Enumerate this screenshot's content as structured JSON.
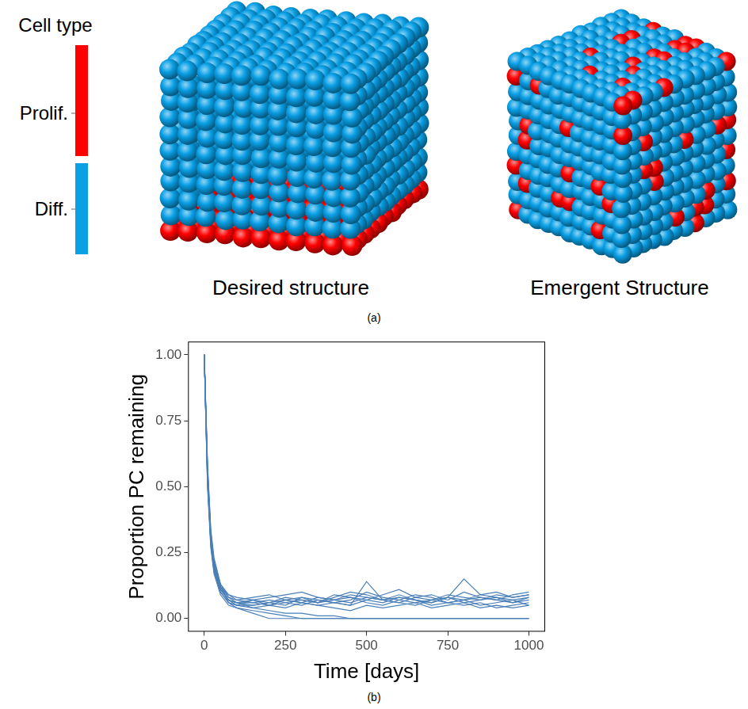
{
  "panel_a": {
    "label": "(a)",
    "legend_title": "Cell type",
    "legend_items": [
      {
        "label": "Prolif.",
        "color": "#ff0000"
      },
      {
        "label": "Diff.",
        "color": "#0aa0e6"
      }
    ],
    "captions": [
      "Desired structure",
      "Emergent Structure"
    ]
  },
  "chart_data": {
    "type": "line",
    "panel_label": "(b)",
    "x_label": "Time [days]",
    "y_label": "Proportion PC remaining",
    "color": "#4a7fb8",
    "grid": false,
    "xlim": [
      -50,
      1050
    ],
    "xticks": [
      0,
      250,
      500,
      750,
      1000
    ],
    "ylim": [
      -0.05,
      1.05
    ],
    "yticks": [
      {
        "value": 0,
        "label": "0.00"
      },
      0.25,
      {
        "value": 0.5,
        "label": "0.50"
      },
      0.75,
      {
        "value": 1,
        "label": "1.00"
      }
    ],
    "x": [
      0,
      10,
      20,
      30,
      50,
      75,
      100,
      150,
      200,
      250,
      300,
      350,
      400,
      450,
      500,
      550,
      600,
      650,
      700,
      750,
      800,
      850,
      900,
      950,
      1000
    ],
    "series": [
      {
        "values": [
          1,
          0.56,
          0.31,
          0.2,
          0.11,
          0.07,
          0.06,
          0.05,
          0.06,
          0.07,
          0.06,
          0.08,
          0.07,
          0.09,
          0.08,
          0.07,
          0.06,
          0.08,
          0.07,
          0.09,
          0.08,
          0.07,
          0.08,
          0.06,
          0.07
        ]
      },
      {
        "values": [
          1,
          0.52,
          0.29,
          0.18,
          0.1,
          0.06,
          0.05,
          0.07,
          0.06,
          0.05,
          0.08,
          0.07,
          0.06,
          0.07,
          0.1,
          0.08,
          0.07,
          0.06,
          0.07,
          0.08,
          0.06,
          0.07,
          0.09,
          0.08,
          0.09
        ]
      },
      {
        "values": [
          1,
          0.58,
          0.33,
          0.22,
          0.13,
          0.08,
          0.06,
          0.04,
          0.03,
          0.02,
          0.02,
          0.01,
          0.01,
          0,
          0,
          0,
          0,
          0,
          0,
          0,
          0,
          0,
          0,
          0,
          0
        ]
      },
      {
        "values": [
          1,
          0.5,
          0.27,
          0.17,
          0.09,
          0.05,
          0.04,
          0.02,
          0,
          0,
          0,
          0,
          0,
          0,
          0,
          0,
          0,
          0,
          0,
          0,
          0,
          0,
          0,
          0,
          0
        ]
      },
      {
        "values": [
          1,
          0.55,
          0.3,
          0.2,
          0.12,
          0.07,
          0.06,
          0.07,
          0.05,
          0.06,
          0.07,
          0.06,
          0.08,
          0.1,
          0.09,
          0.07,
          0.08,
          0.07,
          0.06,
          0.08,
          0.15,
          0.09,
          0.08,
          0.07,
          0.08
        ]
      },
      {
        "values": [
          1,
          0.54,
          0.32,
          0.21,
          0.12,
          0.09,
          0.07,
          0.06,
          0.07,
          0.06,
          0.05,
          0.07,
          0.06,
          0.05,
          0.07,
          0.06,
          0.08,
          0.07,
          0.05,
          0.06,
          0.07,
          0.05,
          0.06,
          0.07,
          0.05
        ]
      },
      {
        "values": [
          1,
          0.57,
          0.3,
          0.19,
          0.11,
          0.07,
          0.05,
          0.05,
          0.06,
          0.08,
          0.07,
          0.06,
          0.07,
          0.08,
          0.06,
          0.05,
          0.07,
          0.09,
          0.08,
          0.06,
          0.07,
          0.08,
          0.07,
          0.06,
          0.08
        ]
      },
      {
        "values": [
          1,
          0.53,
          0.28,
          0.18,
          0.1,
          0.06,
          0.04,
          0.03,
          0.02,
          0.01,
          0,
          0,
          0,
          0,
          0,
          0,
          0,
          0,
          0,
          0,
          0,
          0,
          0,
          0,
          0
        ]
      },
      {
        "values": [
          1,
          0.56,
          0.31,
          0.21,
          0.12,
          0.08,
          0.07,
          0.08,
          0.09,
          0.07,
          0.08,
          0.06,
          0.09,
          0.08,
          0.07,
          0.09,
          0.11,
          0.08,
          0.09,
          0.07,
          0.1,
          0.08,
          0.07,
          0.09,
          0.1
        ]
      },
      {
        "values": [
          1,
          0.55,
          0.29,
          0.19,
          0.11,
          0.07,
          0.06,
          0.06,
          0.05,
          0.07,
          0.06,
          0.05,
          0.06,
          0.05,
          0.14,
          0.07,
          0.06,
          0.05,
          0.07,
          0.06,
          0.05,
          0.06,
          0.04,
          0.05,
          0.06
        ]
      },
      {
        "values": [
          1,
          0.51,
          0.3,
          0.2,
          0.12,
          0.06,
          0.05,
          0.04,
          0.05,
          0.04,
          0.06,
          0.05,
          0.04,
          0.03,
          0.05,
          0.04,
          0.05,
          0.06,
          0.04,
          0.05,
          0.06,
          0.04,
          0.05,
          0.04,
          0.05
        ]
      },
      {
        "values": [
          1,
          0.59,
          0.34,
          0.23,
          0.13,
          0.09,
          0.08,
          0.07,
          0.08,
          0.09,
          0.1,
          0.08,
          0.07,
          0.06,
          0.08,
          0.07,
          0.09,
          0.07,
          0.06,
          0.08,
          0.07,
          0.09,
          0.1,
          0.08,
          0.09
        ]
      }
    ]
  }
}
